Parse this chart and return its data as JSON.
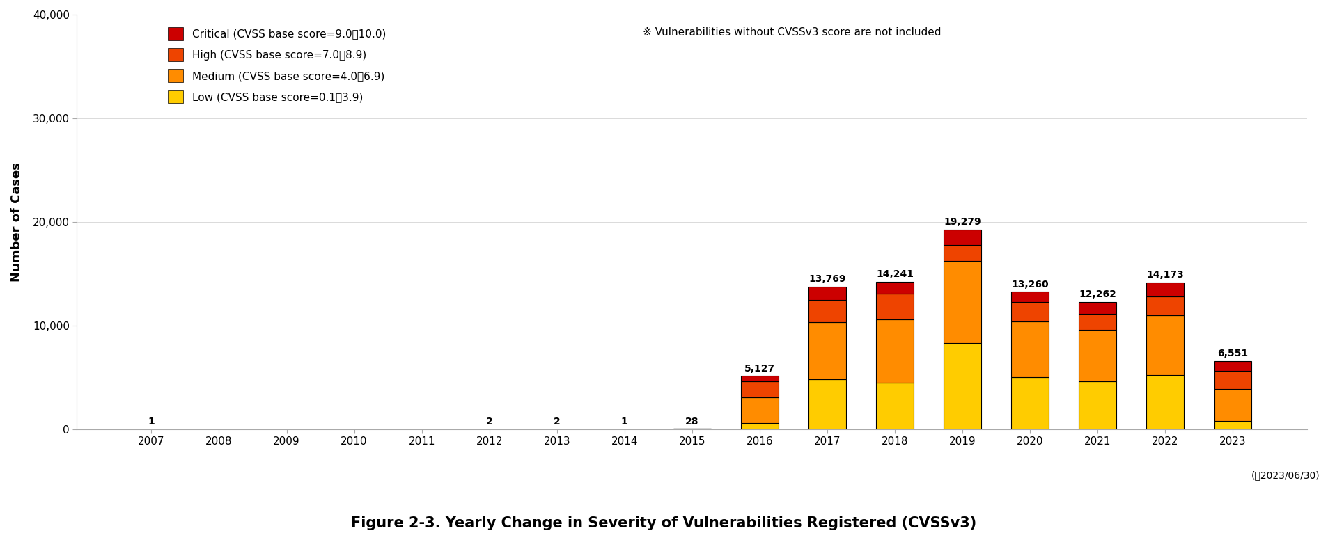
{
  "years": [
    2007,
    2008,
    2009,
    2010,
    2011,
    2012,
    2013,
    2014,
    2015,
    2016,
    2017,
    2018,
    2019,
    2020,
    2021,
    2022,
    2023
  ],
  "low": [
    0,
    0,
    0,
    0,
    0,
    0,
    0,
    0,
    0,
    600,
    4800,
    4500,
    8300,
    5000,
    4600,
    5200,
    800
  ],
  "medium": [
    0,
    0,
    0,
    0,
    0,
    1,
    1,
    0,
    20,
    2500,
    5500,
    6100,
    7900,
    5400,
    5000,
    5800,
    3100
  ],
  "high": [
    1,
    0,
    0,
    0,
    0,
    1,
    1,
    1,
    7,
    1500,
    2200,
    2500,
    1600,
    1900,
    1500,
    1800,
    1700
  ],
  "critical": [
    0,
    0,
    0,
    0,
    0,
    0,
    0,
    0,
    1,
    527,
    1269,
    1141,
    1479,
    960,
    1162,
    1373,
    951
  ],
  "totals": [
    1,
    0,
    0,
    0,
    0,
    2,
    2,
    1,
    28,
    5127,
    13769,
    14241,
    19279,
    13260,
    12262,
    14173,
    6551
  ],
  "color_low": "#FFCC00",
  "color_medium": "#FF8C00",
  "color_high": "#EE4400",
  "color_critical": "#CC0000",
  "ylabel": "Number of Cases",
  "ylim": [
    0,
    40000
  ],
  "yticks": [
    0,
    10000,
    20000,
    30000,
    40000
  ],
  "ytick_labels": [
    "0",
    "10,000",
    "20,000",
    "30,000",
    "40,000"
  ],
  "legend_critical": "Critical (CVSS base score=9.0～10.0)",
  "legend_high": "High (CVSS base score=7.0～8.9)",
  "legend_medium": "Medium (CVSS base score=4.0～6.9)",
  "legend_low": "Low (CVSS base score=0.1～3.9)",
  "note": "※ Vulnerabilities without CVSSv3 score are not included",
  "date_note": "(～2023/06/30)",
  "figure_title": "Figure 2-3. Yearly Change in Severity of Vulnerabilities Registered (CVSSv3)",
  "background_color": "#ffffff",
  "bar_edge_color": "#000000",
  "bar_linewidth": 0.8
}
